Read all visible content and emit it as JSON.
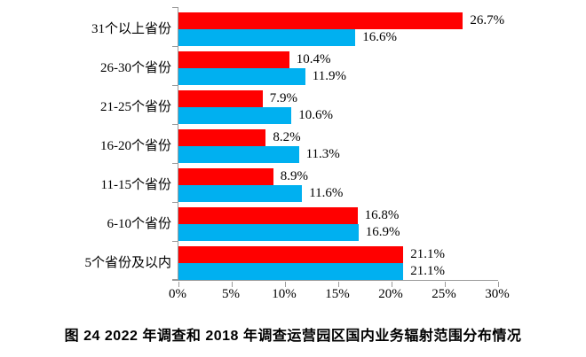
{
  "title": "图 24  2022 年调查和 2018 年调查运营园区国内业务辐射范围分布情况",
  "colors": {
    "red_series": "#FF0000",
    "blue_series": "#00B0F0",
    "axis": "#9a9a9a",
    "text": "#000000"
  },
  "chart_data": {
    "type": "bar",
    "orientation": "horizontal",
    "title": "图 24  2022 年调查和 2018 年调查运营园区国内业务辐射范围分布情况",
    "categories": [
      "31个以上省份",
      "26-30个省份",
      "21-25个省份",
      "16-20个省份",
      "11-15个省份",
      "6-10个省份",
      "5个省份及以内"
    ],
    "series": [
      {
        "id": "red",
        "color": "#FF0000",
        "values": [
          26.7,
          10.4,
          7.9,
          8.2,
          8.9,
          16.8,
          21.1
        ]
      },
      {
        "id": "blue",
        "color": "#00B0F0",
        "values": [
          16.6,
          11.9,
          10.6,
          11.3,
          11.6,
          16.9,
          21.1
        ]
      }
    ],
    "data_labels": {
      "red": [
        "26.7%",
        "10.4%",
        "7.9%",
        "8.2%",
        "8.9%",
        "16.8%",
        "21.1%"
      ],
      "blue": [
        "16.6%",
        "11.9%",
        "10.6%",
        "11.3%",
        "11.6%",
        "16.9%",
        "21.1%"
      ]
    },
    "x_tick_labels": [
      "0%",
      "5%",
      "10%",
      "15%",
      "20%",
      "25%",
      "30%"
    ],
    "xlim": [
      0,
      30
    ],
    "grid": false,
    "legend": false
  }
}
